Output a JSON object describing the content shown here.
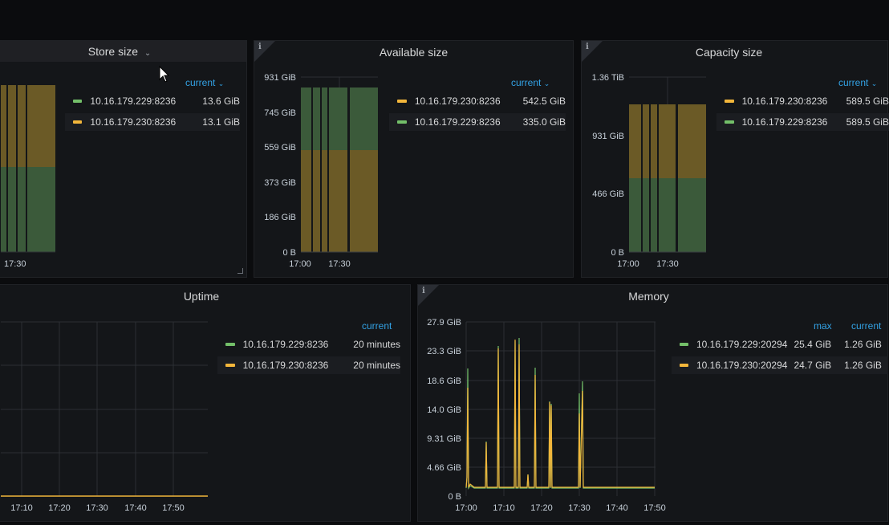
{
  "colors": {
    "green": "#73bf69",
    "yellow": "#f2b63b",
    "fill_green": "#3b5a3a",
    "fill_yellow": "#6b5a26",
    "accent": "#33a2e5"
  },
  "panels": {
    "store_size": {
      "title": "Store size",
      "title_icon": "chevron-down-icon",
      "header": "current",
      "x_labels": [
        "17:30"
      ],
      "legend": [
        {
          "name": "10.16.179.229:8236",
          "value": "13.6 GiB",
          "color": "green"
        },
        {
          "name": "10.16.179.230:8236",
          "value": "13.1 GiB",
          "color": "yellow"
        }
      ]
    },
    "available_size": {
      "title": "Available size",
      "header": "current",
      "y_labels": [
        "931 GiB",
        "745 GiB",
        "559 GiB",
        "373 GiB",
        "186 GiB",
        "0 B"
      ],
      "x_labels": [
        "17:00",
        "17:30"
      ],
      "legend": [
        {
          "name": "10.16.179.230:8236",
          "value": "542.5 GiB",
          "color": "yellow"
        },
        {
          "name": "10.16.179.229:8236",
          "value": "335.0 GiB",
          "color": "green"
        }
      ]
    },
    "capacity_size": {
      "title": "Capacity size",
      "header": "current",
      "y_labels": [
        "1.36 TiB",
        "931 GiB",
        "466 GiB",
        "0 B"
      ],
      "x_labels": [
        "17:00",
        "17:30"
      ],
      "legend": [
        {
          "name": "10.16.179.230:8236",
          "value": "589.5 GiB",
          "color": "yellow"
        },
        {
          "name": "10.16.179.229:8236",
          "value": "589.5 GiB",
          "color": "green"
        }
      ]
    },
    "uptime": {
      "title": "Uptime",
      "header": "current",
      "x_labels": [
        "17:10",
        "17:20",
        "17:30",
        "17:40",
        "17:50"
      ],
      "legend": [
        {
          "name": "10.16.179.229:8236",
          "value": "20 minutes",
          "color": "green"
        },
        {
          "name": "10.16.179.230:8236",
          "value": "20 minutes",
          "color": "yellow"
        }
      ]
    },
    "memory": {
      "title": "Memory",
      "headers": [
        "max",
        "current"
      ],
      "y_labels": [
        "27.9 GiB",
        "23.3 GiB",
        "18.6 GiB",
        "14.0 GiB",
        "9.31 GiB",
        "4.66 GiB",
        "0 B"
      ],
      "x_labels": [
        "17:00",
        "17:10",
        "17:20",
        "17:30",
        "17:40",
        "17:50"
      ],
      "legend": [
        {
          "name": "10.16.179.229:20294",
          "max": "25.4 GiB",
          "current": "1.26 GiB",
          "color": "green"
        },
        {
          "name": "10.16.179.230:20294",
          "max": "24.7 GiB",
          "current": "1.26 GiB",
          "color": "yellow"
        }
      ]
    }
  }
}
